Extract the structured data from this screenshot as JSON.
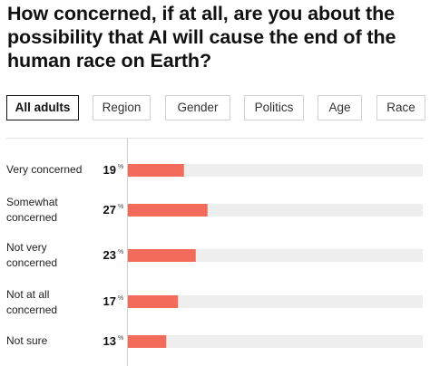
{
  "header": {
    "title": "How concerned, if at all, are you about the possibility that AI will cause the end of the human race on Earth?"
  },
  "tabs": [
    {
      "label": "All adults",
      "active": true
    },
    {
      "label": "Region",
      "active": false
    },
    {
      "label": "Gender",
      "active": false
    },
    {
      "label": "Politics",
      "active": false
    },
    {
      "label": "Age",
      "active": false
    },
    {
      "label": "Race",
      "active": false
    }
  ],
  "chart_data": {
    "type": "bar",
    "orientation": "horizontal",
    "categories": [
      "Very concerned",
      "Somewhat concerned",
      "Not very concerned",
      "Not at all concerned",
      "Not sure"
    ],
    "values": [
      19,
      27,
      23,
      17,
      13
    ],
    "value_suffix": "%",
    "xlim": [
      0,
      100
    ],
    "colors": {
      "bar": "#f26b5b",
      "track": "#eeeeee"
    },
    "grid": false
  }
}
